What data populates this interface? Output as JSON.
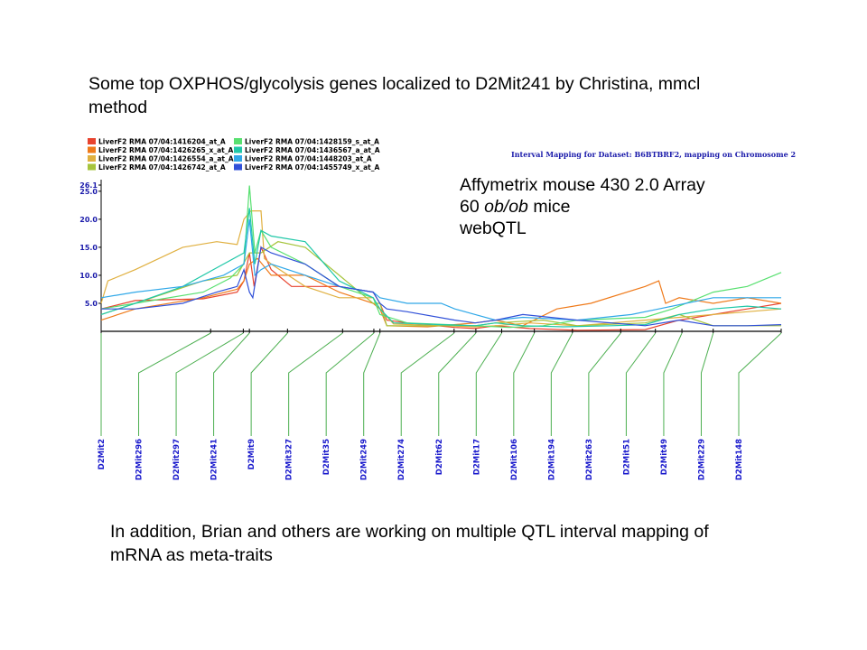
{
  "slide": {
    "title": "Some top OXPHOS/glycolysis genes localized to D2Mit241 by Christina, mmcl method",
    "platform_lines": [
      "Affymetrix mouse 430 2.0 Array",
      "60 ",
      "ob/ob",
      " mice",
      "webQTL"
    ],
    "caption": "In addition, Brian and others are working on multiple QTL interval mapping of mRNA as meta-traits"
  },
  "chart_data": {
    "type": "line",
    "title": "Interval Mapping for Dataset: B6BTBRF2, mapping on Chromosome 2",
    "y_axis": {
      "max_label": "26.1",
      "ticks": [
        "5.0",
        "10.0",
        "15.0",
        "20.0",
        "25.0"
      ],
      "tick_values": [
        5,
        10,
        15,
        20,
        25
      ],
      "ylim": [
        0,
        26.1
      ]
    },
    "x_range": [
      0,
      100
    ],
    "markers": [
      {
        "name": "D2Mit2",
        "pos": 0
      },
      {
        "name": "D2Mit296",
        "pos": 16.1
      },
      {
        "name": "D2Mit297",
        "pos": 20.9
      },
      {
        "name": "D2Mit241",
        "pos": 21.8
      },
      {
        "name": "D2Mit9",
        "pos": 27.4
      },
      {
        "name": "D2Mit327",
        "pos": 35.5
      },
      {
        "name": "D2Mit35",
        "pos": 40.1
      },
      {
        "name": "D2Mit249",
        "pos": 41.0
      },
      {
        "name": "D2Mit274",
        "pos": 51.9
      },
      {
        "name": "D2Mit62",
        "pos": 55.1
      },
      {
        "name": "D2Mit17",
        "pos": 58.9
      },
      {
        "name": "D2Mit106",
        "pos": 63.7
      },
      {
        "name": "D2Mit194",
        "pos": 69.3
      },
      {
        "name": "D2Mit263",
        "pos": 76.4
      },
      {
        "name": "D2Mit51",
        "pos": 81.5
      },
      {
        "name": "D2Mit49",
        "pos": 85.4
      },
      {
        "name": "D2Mit229",
        "pos": 90.0
      },
      {
        "name": "D2Mit148",
        "pos": 100
      }
    ],
    "series": [
      {
        "name": "LiverF2 RMA 07/04:1416204_at_A",
        "color": "#e8432e",
        "points": [
          [
            0,
            4
          ],
          [
            5,
            5.5
          ],
          [
            15,
            5.8
          ],
          [
            20,
            7
          ],
          [
            21,
            9
          ],
          [
            21.8,
            14
          ],
          [
            22.5,
            8
          ],
          [
            23.5,
            15
          ],
          [
            25,
            11
          ],
          [
            28,
            8
          ],
          [
            35,
            8
          ],
          [
            40,
            7
          ],
          [
            41,
            5
          ],
          [
            42,
            2
          ],
          [
            45,
            1.5
          ],
          [
            52,
            0.7
          ],
          [
            55,
            0.5
          ],
          [
            58,
            1
          ],
          [
            63,
            0.5
          ],
          [
            70,
            0.2
          ],
          [
            80,
            0.3
          ],
          [
            85,
            2
          ],
          [
            90,
            3
          ],
          [
            95,
            4
          ],
          [
            100,
            5
          ]
        ]
      },
      {
        "name": "LiverF2 RMA 07/04:1426265_x_at_A",
        "color": "#ef7a1a",
        "points": [
          [
            0,
            2
          ],
          [
            5,
            4
          ],
          [
            15,
            6
          ],
          [
            20,
            7.5
          ],
          [
            21,
            9
          ],
          [
            21.8,
            12
          ],
          [
            23,
            13
          ],
          [
            25,
            10
          ],
          [
            30,
            10
          ],
          [
            35,
            7
          ],
          [
            40,
            5
          ],
          [
            41,
            4
          ],
          [
            42,
            1
          ],
          [
            48,
            0.8
          ],
          [
            55,
            1.5
          ],
          [
            58,
            2
          ],
          [
            62,
            1
          ],
          [
            67,
            4
          ],
          [
            72,
            5
          ],
          [
            80,
            8
          ],
          [
            82,
            9
          ],
          [
            83,
            5
          ],
          [
            85,
            6
          ],
          [
            90,
            5
          ],
          [
            95,
            6
          ],
          [
            100,
            5
          ]
        ]
      },
      {
        "name": "LiverF2 RMA 07/04:1426554_a_at_A",
        "color": "#e0b040",
        "points": [
          [
            0,
            5
          ],
          [
            1,
            9
          ],
          [
            5,
            11
          ],
          [
            12,
            15
          ],
          [
            17,
            16
          ],
          [
            20,
            15.5
          ],
          [
            21,
            20
          ],
          [
            22,
            21.5
          ],
          [
            23.5,
            21.5
          ],
          [
            24,
            13
          ],
          [
            25,
            12
          ],
          [
            30,
            8
          ],
          [
            35,
            6
          ],
          [
            40,
            6
          ],
          [
            41,
            4
          ],
          [
            43,
            1.3
          ],
          [
            50,
            1
          ],
          [
            55,
            0.8
          ],
          [
            58,
            1
          ],
          [
            63,
            1.5
          ],
          [
            70,
            1
          ],
          [
            80,
            2
          ],
          [
            90,
            3
          ],
          [
            95,
            3.5
          ],
          [
            100,
            4
          ]
        ]
      },
      {
        "name": "LiverF2 RMA 07/04:1426742_at_A",
        "color": "#a6c43c",
        "points": [
          [
            0,
            3
          ],
          [
            5,
            5
          ],
          [
            15,
            9
          ],
          [
            20,
            10
          ],
          [
            21.8,
            14
          ],
          [
            23.5,
            14
          ],
          [
            26,
            16
          ],
          [
            30,
            15
          ],
          [
            35,
            10
          ],
          [
            40,
            5
          ],
          [
            41,
            5
          ],
          [
            42,
            1
          ],
          [
            50,
            1
          ],
          [
            55,
            1
          ],
          [
            58,
            1.5
          ],
          [
            65,
            2
          ],
          [
            70,
            1
          ],
          [
            80,
            1.5
          ],
          [
            85,
            3
          ],
          [
            90,
            1
          ],
          [
            95,
            1
          ],
          [
            100,
            1
          ]
        ]
      },
      {
        "name": "LiverF2 RMA 07/04:1428159_s_at_A",
        "color": "#58e070",
        "points": [
          [
            0,
            4
          ],
          [
            5,
            5
          ],
          [
            15,
            7
          ],
          [
            19,
            9.5
          ],
          [
            21,
            12
          ],
          [
            21.8,
            26
          ],
          [
            22.6,
            14
          ],
          [
            23.5,
            18
          ],
          [
            25,
            15
          ],
          [
            30,
            12
          ],
          [
            35,
            8
          ],
          [
            40,
            6
          ],
          [
            41,
            3
          ],
          [
            45,
            1.5
          ],
          [
            55,
            1
          ],
          [
            60,
            0.7
          ],
          [
            65,
            1
          ],
          [
            70,
            2
          ],
          [
            80,
            2.5
          ],
          [
            84,
            4
          ],
          [
            86,
            5
          ],
          [
            90,
            7
          ],
          [
            95,
            8
          ],
          [
            100,
            10.5
          ]
        ]
      },
      {
        "name": "LiverF2 RMA 07/04:1436567_a_at_A",
        "color": "#20c8a8",
        "points": [
          [
            0,
            3
          ],
          [
            5,
            5
          ],
          [
            12,
            8
          ],
          [
            18,
            12
          ],
          [
            21,
            14
          ],
          [
            21.8,
            22
          ],
          [
            22.6,
            12
          ],
          [
            23.5,
            18
          ],
          [
            25,
            17
          ],
          [
            30,
            16
          ],
          [
            35,
            9
          ],
          [
            40,
            6
          ],
          [
            41,
            4
          ],
          [
            43,
            1.5
          ],
          [
            50,
            1.2
          ],
          [
            55,
            1
          ],
          [
            58,
            1.5
          ],
          [
            62,
            1
          ],
          [
            68,
            0.8
          ],
          [
            75,
            1
          ],
          [
            80,
            1.2
          ],
          [
            85,
            3
          ],
          [
            90,
            4
          ],
          [
            95,
            4.5
          ],
          [
            100,
            4
          ]
        ]
      },
      {
        "name": "LiverF2 RMA 07/04:1448203_at_A",
        "color": "#30a8e8",
        "points": [
          [
            0,
            6
          ],
          [
            5,
            7
          ],
          [
            12,
            8
          ],
          [
            18,
            10
          ],
          [
            21,
            12
          ],
          [
            21.8,
            20
          ],
          [
            22.6,
            10
          ],
          [
            23.5,
            11
          ],
          [
            25,
            12
          ],
          [
            30,
            10
          ],
          [
            35,
            8
          ],
          [
            40,
            7
          ],
          [
            41,
            6
          ],
          [
            45,
            5
          ],
          [
            50,
            5
          ],
          [
            52,
            4
          ],
          [
            55,
            3
          ],
          [
            58,
            2
          ],
          [
            62,
            2.5
          ],
          [
            70,
            2
          ],
          [
            78,
            3
          ],
          [
            82,
            4
          ],
          [
            86,
            5
          ],
          [
            90,
            6
          ],
          [
            95,
            6
          ],
          [
            100,
            6
          ]
        ]
      },
      {
        "name": "LiverF2 RMA 07/04:1455749_x_at_A",
        "color": "#3050d8",
        "points": [
          [
            0,
            4
          ],
          [
            5,
            4
          ],
          [
            12,
            5
          ],
          [
            17,
            7
          ],
          [
            20,
            8
          ],
          [
            21,
            11
          ],
          [
            21.8,
            7
          ],
          [
            22.3,
            6
          ],
          [
            23.5,
            15
          ],
          [
            25,
            14
          ],
          [
            30,
            12
          ],
          [
            35,
            8
          ],
          [
            40,
            7
          ],
          [
            41,
            5
          ],
          [
            42,
            4
          ],
          [
            45,
            3.5
          ],
          [
            52,
            2
          ],
          [
            55,
            1.5
          ],
          [
            58,
            2
          ],
          [
            62,
            3
          ],
          [
            70,
            2
          ],
          [
            80,
            1
          ],
          [
            85,
            2
          ],
          [
            90,
            1
          ],
          [
            95,
            1
          ],
          [
            100,
            1.2
          ]
        ]
      }
    ]
  }
}
